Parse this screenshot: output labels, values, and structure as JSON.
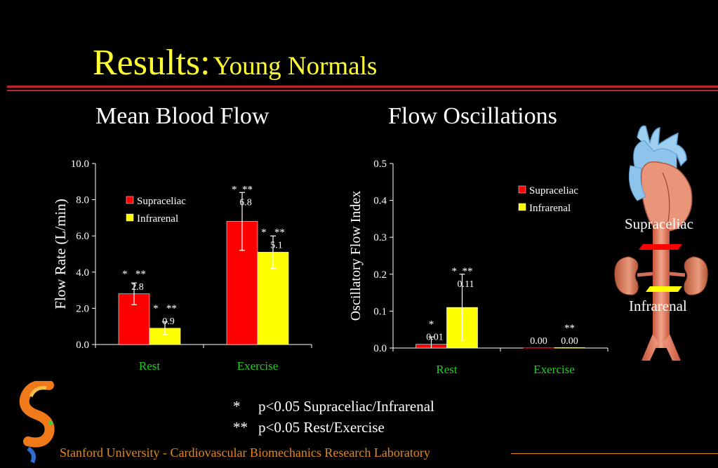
{
  "slide": {
    "title_main": "Results:",
    "title_sub": "Young Normals",
    "footnotes": [
      {
        "symbol": "*",
        "text": "p<0.05 Supraceliac/Infrarenal"
      },
      {
        "symbol": "**",
        "text": "p<0.05 Rest/Exercise"
      }
    ],
    "footer": "Stanford University - Cardiovascular Biomechanics Research Laboratory",
    "anatomy_labels": {
      "upper": "Supraceliac",
      "lower": "Infrarenal"
    },
    "colors": {
      "title": "#ffff33",
      "rule": "#b8282c",
      "category_label": "#22cc22",
      "footer": "#e08a1e",
      "supraceliac": "#ff0000",
      "infrarenal": "#ffff00"
    }
  },
  "chart_data": [
    {
      "type": "bar",
      "title": "Mean Blood Flow",
      "ylabel": "Flow Rate (L/min)",
      "xlabel": "",
      "categories": [
        "Rest",
        "Exercise"
      ],
      "ylim": [
        0,
        10
      ],
      "yticks": [
        "0.0",
        "2.0",
        "4.0",
        "6.0",
        "8.0",
        "10.0"
      ],
      "legend_position": "top-left",
      "grid": false,
      "series": [
        {
          "name": "Supraceliac",
          "color": "#ff0000",
          "values": [
            2.8,
            6.8
          ],
          "errors": [
            0.6,
            1.6
          ],
          "labels": [
            "2.8",
            "6.8"
          ],
          "marks": [
            "*   **",
            "*  **"
          ]
        },
        {
          "name": "Infrarenal",
          "color": "#ffff00",
          "values": [
            0.9,
            5.1
          ],
          "errors": [
            0.35,
            0.9
          ],
          "labels": [
            "0.9",
            "5.1"
          ],
          "marks": [
            "*   **",
            "*   **"
          ]
        }
      ]
    },
    {
      "type": "bar",
      "title": "Flow Oscillations",
      "ylabel": "Oscillatory Flow Index",
      "xlabel": "",
      "categories": [
        "Rest",
        "Exercise"
      ],
      "ylim": [
        0,
        0.5
      ],
      "yticks": [
        "0.0",
        "0.1",
        "0.2",
        "0.3",
        "0.4",
        "0.5"
      ],
      "legend_position": "top-right",
      "grid": false,
      "series": [
        {
          "name": "Supraceliac",
          "color": "#ff0000",
          "values": [
            0.01,
            0.0
          ],
          "errors": [
            0.02,
            0
          ],
          "labels": [
            "0.01",
            "0.00"
          ],
          "marks": [
            "*",
            ""
          ]
        },
        {
          "name": "Infrarenal",
          "color": "#ffff00",
          "values": [
            0.11,
            0.0
          ],
          "errors": [
            0.09,
            0
          ],
          "labels": [
            "0.11",
            "0.00"
          ],
          "marks": [
            "*  **",
            "**"
          ]
        }
      ]
    }
  ]
}
